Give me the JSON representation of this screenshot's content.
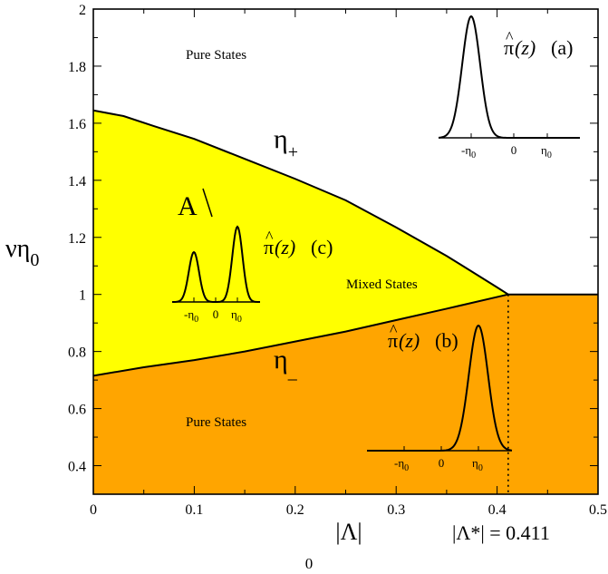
{
  "chart_data": {
    "type": "area",
    "title": "",
    "xlabel": "|Λ|",
    "xlabel_subscript": "0",
    "ylabel": "νη",
    "ylabel_subscript": "0",
    "xlim": [
      0,
      0.5
    ],
    "ylim": [
      0.3,
      2.0
    ],
    "x_ticks": [
      0,
      0.1,
      0.2,
      0.3,
      0.4,
      0.5
    ],
    "x_tick_labels": [
      "0",
      "0.1",
      "0.2",
      "0.3",
      "0.4",
      "0.5"
    ],
    "y_ticks": [
      0.4,
      0.6,
      0.8,
      1.0,
      1.2,
      1.4,
      1.6,
      1.8,
      2.0
    ],
    "y_tick_labels": [
      "0.4",
      "0.6",
      "0.8",
      "1",
      "1.2",
      "1.4",
      "1.6",
      "1.8",
      "2"
    ],
    "grid": false,
    "colors": {
      "mixed_region": "#ffff00",
      "lower_region": "#ffa500",
      "line": "#000000"
    },
    "series": [
      {
        "name": "η+",
        "x": [
          0,
          0.03,
          0.06,
          0.1,
          0.15,
          0.2,
          0.25,
          0.3,
          0.35,
          0.4,
          0.411
        ],
        "y": [
          1.645,
          1.625,
          1.59,
          1.545,
          1.475,
          1.405,
          1.33,
          1.235,
          1.135,
          1.025,
          1.0
        ]
      },
      {
        "name": "η−",
        "x": [
          0,
          0.05,
          0.1,
          0.15,
          0.2,
          0.25,
          0.3,
          0.35,
          0.411
        ],
        "y": [
          0.715,
          0.745,
          0.77,
          0.8,
          0.835,
          0.87,
          0.91,
          0.95,
          1.0
        ]
      },
      {
        "name": "",
        "x": [
          0.411,
          0.5
        ],
        "y": [
          1.0,
          1.0
        ]
      }
    ],
    "critical_value": {
      "x": 0.411,
      "label": "|Λ*| = 0.411"
    },
    "annotations": {
      "pure_top": "Pure States",
      "pure_bottom": "Pure States",
      "mixed": "Mixed States",
      "eta_plus": "η",
      "eta_plus_sub": "+",
      "eta_minus": "η",
      "eta_minus_sub": "_",
      "region_letter": "A",
      "pi_a": "(a)",
      "pi_b": "(b)",
      "pi_c": "(c)",
      "pi_symbol": "π",
      "pi_hat": "^",
      "pi_arg": "(z)"
    },
    "insets": {
      "tick_minus": "-η",
      "tick_zero": "0",
      "tick_plus": "η",
      "tick_sub": "0"
    }
  }
}
